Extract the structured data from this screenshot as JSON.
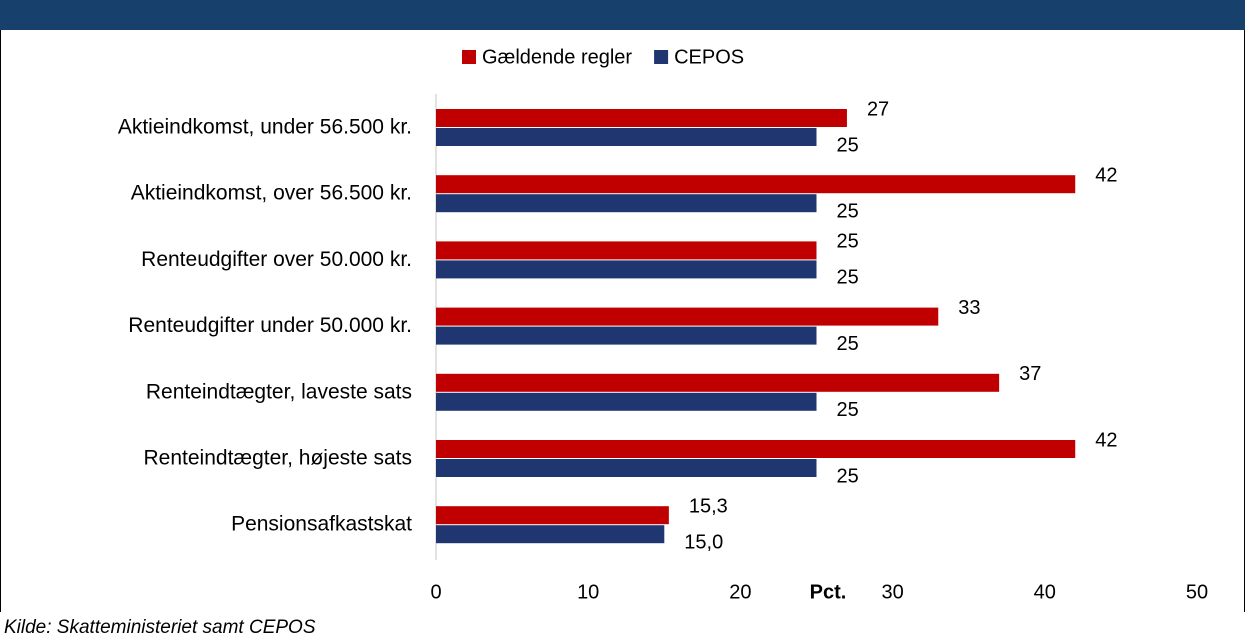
{
  "chart_data": {
    "type": "bar",
    "orientation": "horizontal",
    "categories": [
      "Aktieindkomst, under 56.500 kr.",
      "Aktieindkomst, over 56.500 kr.",
      "Renteudgifter over 50.000 kr.",
      "Renteudgifter under 50.000 kr.",
      "Renteindtægter, laveste sats",
      "Renteindtægter, højeste sats",
      "Pensionsafkastskat"
    ],
    "series": [
      {
        "name": "Gældende regler",
        "color": "#c00000",
        "values": [
          27,
          42,
          25,
          33,
          37,
          42,
          15.3
        ],
        "value_labels": [
          "27",
          "42",
          "25",
          "33",
          "37",
          "42",
          "15,3"
        ]
      },
      {
        "name": "CEPOS",
        "color": "#1f3670",
        "values": [
          25,
          25,
          25,
          25,
          25,
          25,
          15.0
        ],
        "value_labels": [
          "25",
          "25",
          "25",
          "25",
          "25",
          "25",
          "15,0"
        ]
      }
    ],
    "xlim": [
      0,
      50
    ],
    "xticks": [
      0,
      10,
      20,
      30,
      40,
      50
    ],
    "xlabel": "Pct.",
    "source": "Kilde: Skatteministeriet samt CEPOS",
    "legend": "top"
  }
}
